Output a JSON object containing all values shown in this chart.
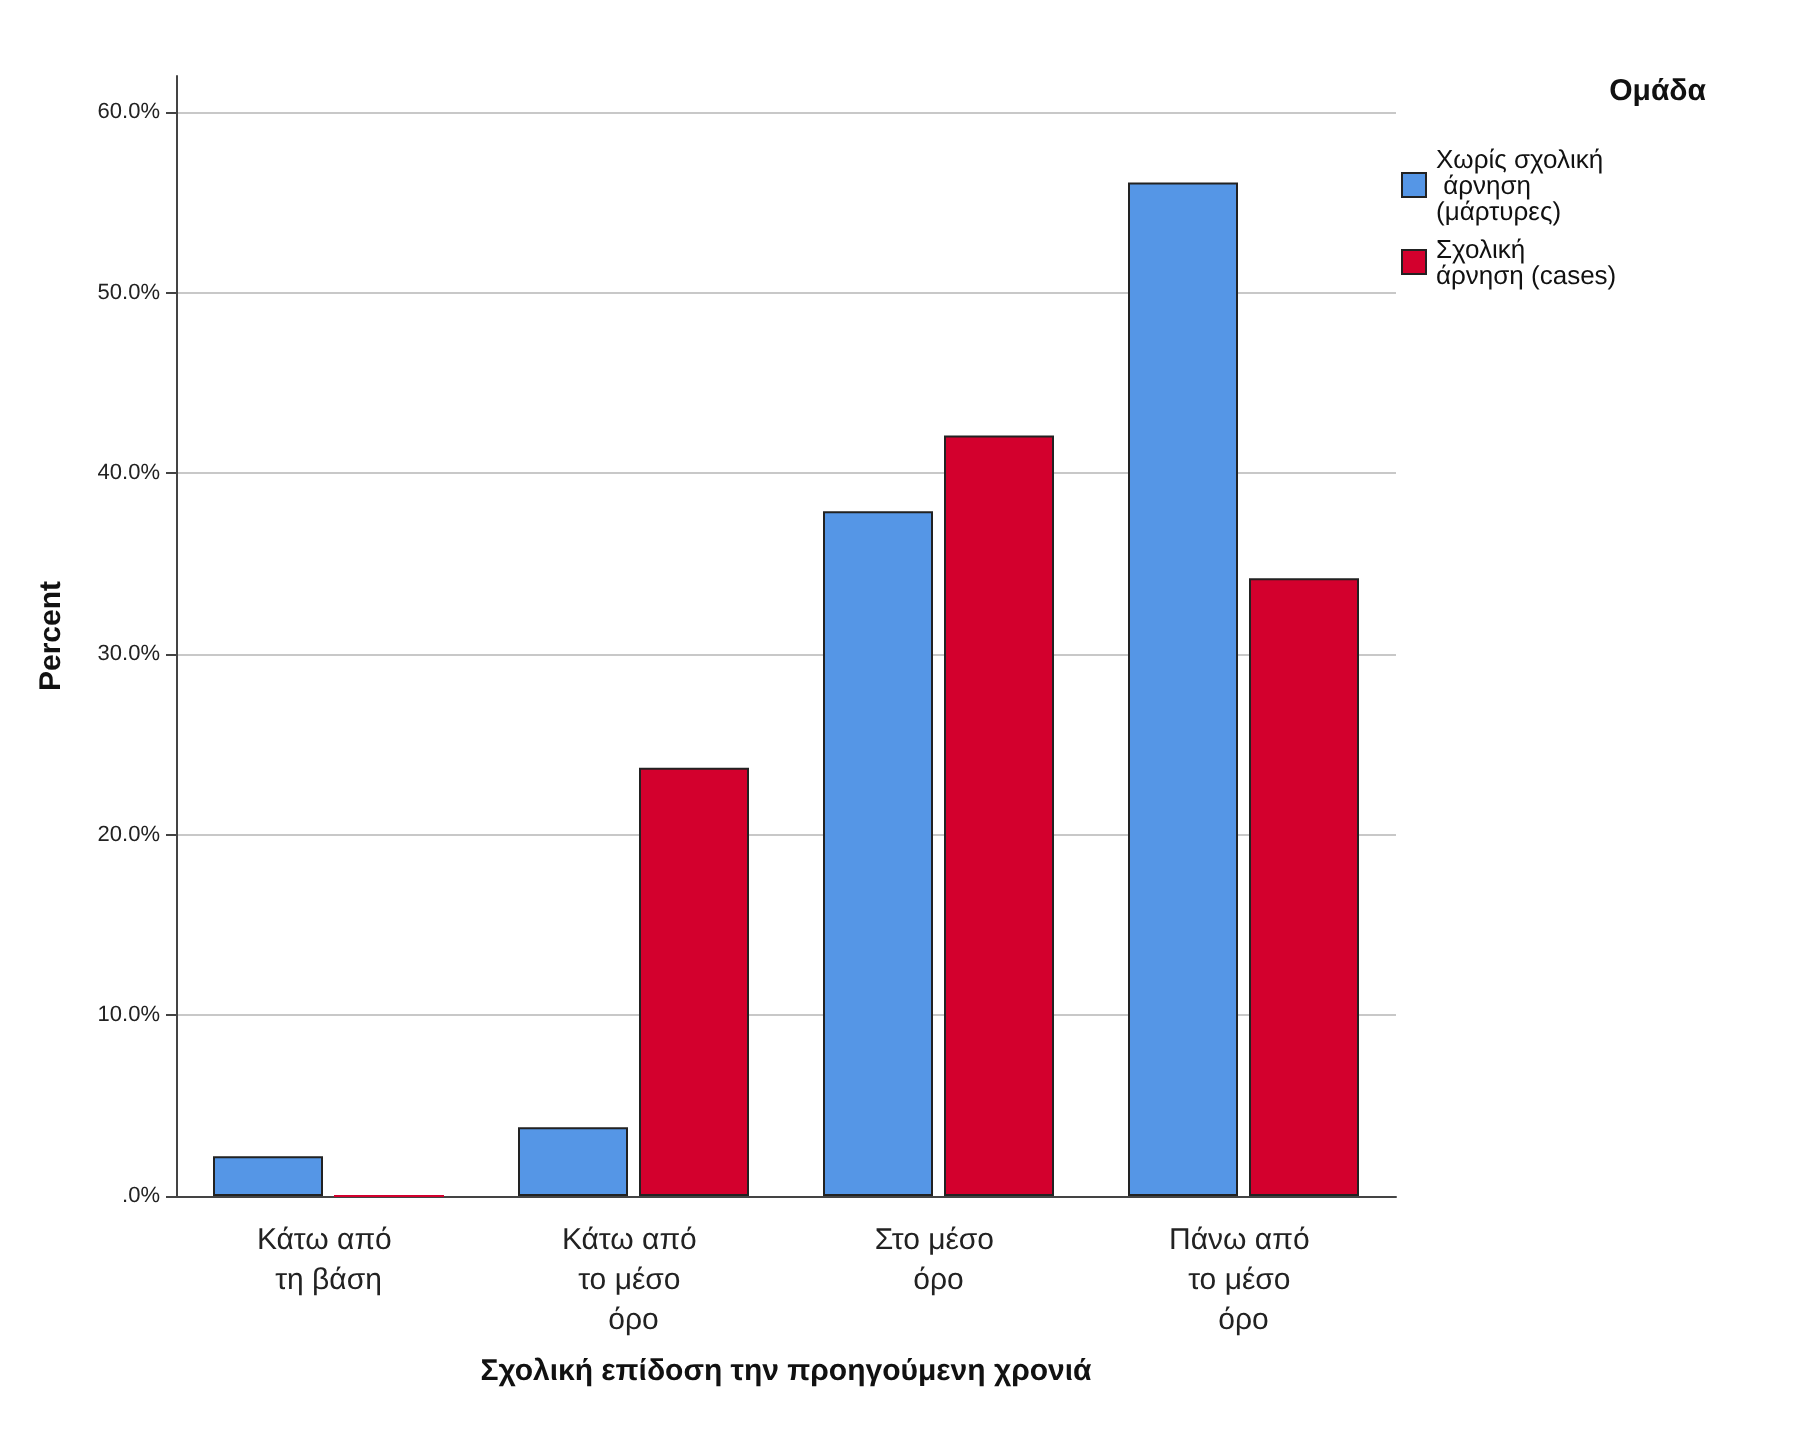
{
  "chart_data": {
    "type": "bar",
    "xlabel": "Σχολική επίδοση την προηγούμενη χρονιά",
    "ylabel": "Percent",
    "legend_title": "Ομάδα",
    "categories": [
      "Κάτω από τη βάση",
      "Κάτω από το μέσο όρο",
      "Στο μέσο όρο",
      "Πάνω από το μέσο όρο"
    ],
    "series": [
      {
        "name": "Χωρίς σχολική άρνηση (μάρτυρες)",
        "color": "#5596e6",
        "values": [
          2.2,
          3.8,
          37.9,
          56.1
        ]
      },
      {
        "name": "Σχολική άρνηση (cases)",
        "color": "#d3002d",
        "values": [
          0,
          23.7,
          42.1,
          34.2
        ]
      }
    ],
    "ylim": [
      0,
      62
    ],
    "yticks": [
      {
        "value": 0,
        "label": ".0%"
      },
      {
        "value": 10,
        "label": "10.0%"
      },
      {
        "value": 20,
        "label": "20.0%"
      },
      {
        "value": 30,
        "label": "30.0%"
      },
      {
        "value": 40,
        "label": "40.0%"
      },
      {
        "value": 50,
        "label": "50.0%"
      },
      {
        "value": 60,
        "label": "60.0%"
      }
    ],
    "grid": "y",
    "legend": "top right"
  }
}
